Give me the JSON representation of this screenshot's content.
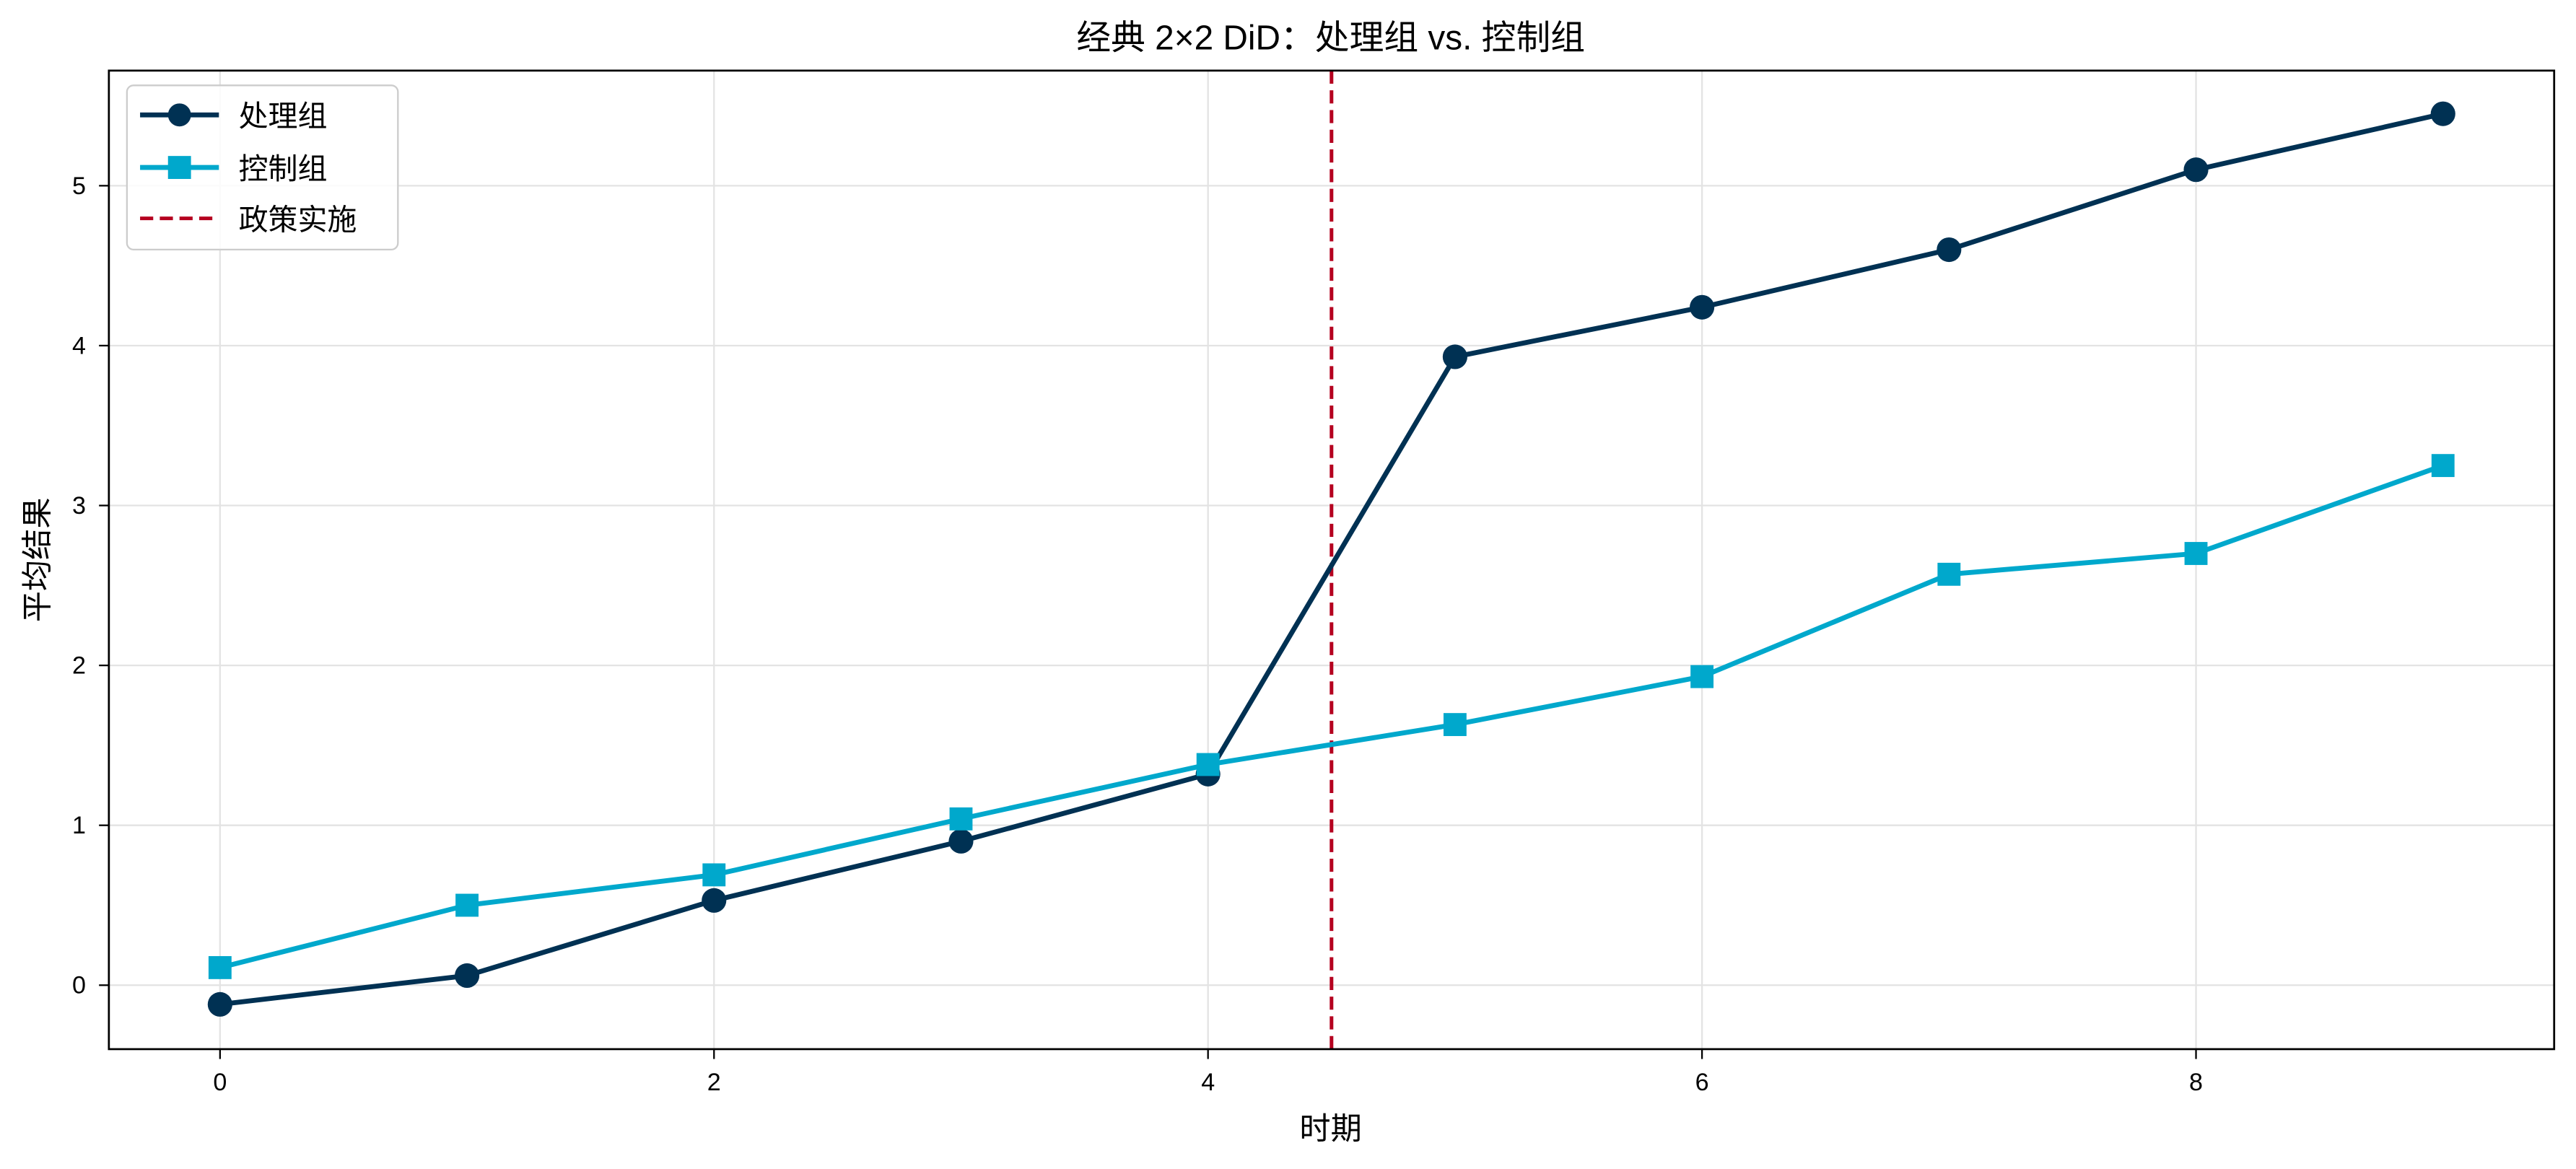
{
  "chart_data": {
    "type": "line",
    "title": "经典 2×2 DiD：处理组 vs. 控制组",
    "xlabel": "时期",
    "ylabel": "平均结果",
    "xlim": [
      -0.45,
      9.45
    ],
    "ylim": [
      -0.4,
      5.72
    ],
    "xticks": [
      0,
      2,
      4,
      6,
      8
    ],
    "yticks": [
      0,
      1,
      2,
      3,
      4,
      5
    ],
    "grid": true,
    "legend_position": "top-left",
    "x": [
      0,
      1,
      2,
      3,
      4,
      5,
      6,
      7,
      8,
      9
    ],
    "series": [
      {
        "name": "处理组",
        "color": "#003153",
        "marker": "circle",
        "values": [
          -0.12,
          0.06,
          0.53,
          0.9,
          1.32,
          3.93,
          4.24,
          4.6,
          5.1,
          5.45
        ]
      },
      {
        "name": "控制组",
        "color": "#00A8CC",
        "marker": "square",
        "values": [
          0.11,
          0.5,
          0.69,
          1.04,
          1.38,
          1.63,
          1.93,
          2.57,
          2.7,
          3.25
        ]
      }
    ],
    "vline": {
      "name": "政策实施",
      "x": 4.5,
      "color": "#B5001F",
      "style": "dashed"
    }
  }
}
